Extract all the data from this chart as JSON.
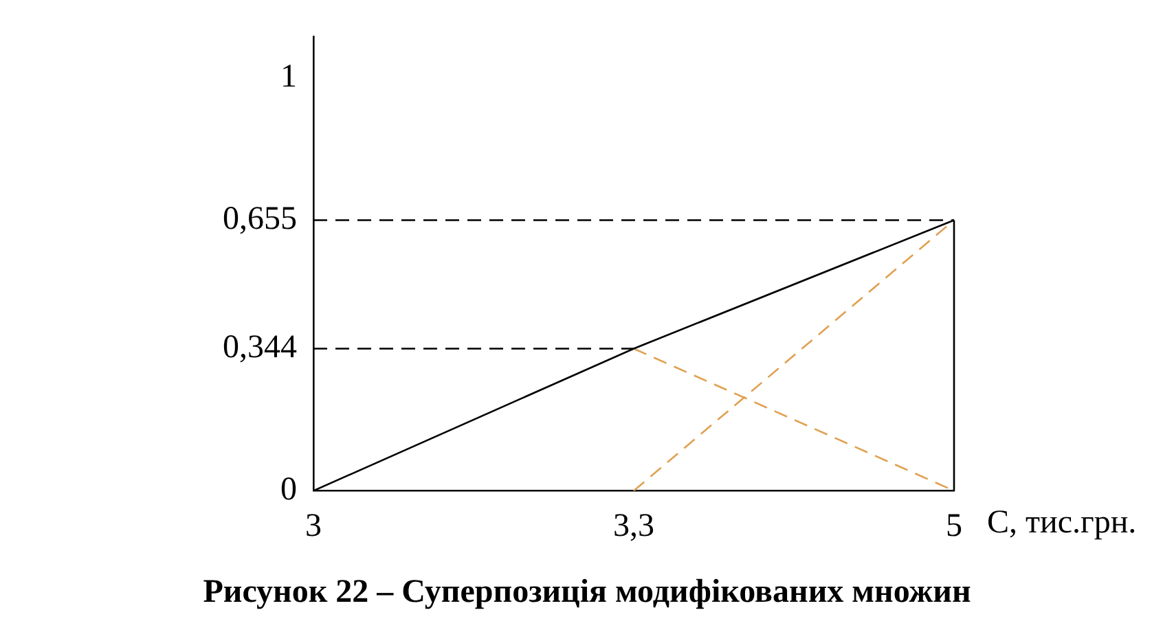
{
  "chart_data": {
    "type": "line",
    "xlabel": "C, тис.грн.",
    "annotations": [
      "Рисунок 22 – Суперпозиція модифікованих множин"
    ],
    "categories": [
      "3",
      "3,3",
      "5"
    ],
    "series": [
      {
        "color": "#000000",
        "values": [
          0,
          0.344,
          0.655
        ],
        "line_style": "solid"
      },
      {
        "color": "#e0a050",
        "values": [
          null,
          0.344,
          0
        ],
        "line_style": "dashed"
      },
      {
        "color": "#e0a050",
        "values": [
          null,
          0,
          0.655
        ],
        "line_style": "dashed"
      }
    ],
    "ylim": [
      0,
      1.1
    ],
    "yticks": [
      0,
      {
        "value": 0.344,
        "label": "0,344"
      },
      {
        "value": 0.655,
        "label": "0,655"
      },
      1
    ],
    "ref_lines": [
      {
        "axis": "y",
        "value": 0.655,
        "line_style": "dashed",
        "color": "#000000"
      },
      {
        "axis": "y",
        "value": 0.344,
        "line_style": "dashed",
        "color": "#000000"
      },
      {
        "axis": "x",
        "value": "5",
        "line_style": "solid",
        "color": "#000000"
      }
    ],
    "grid": false,
    "legend": false,
    "marker": "none"
  }
}
